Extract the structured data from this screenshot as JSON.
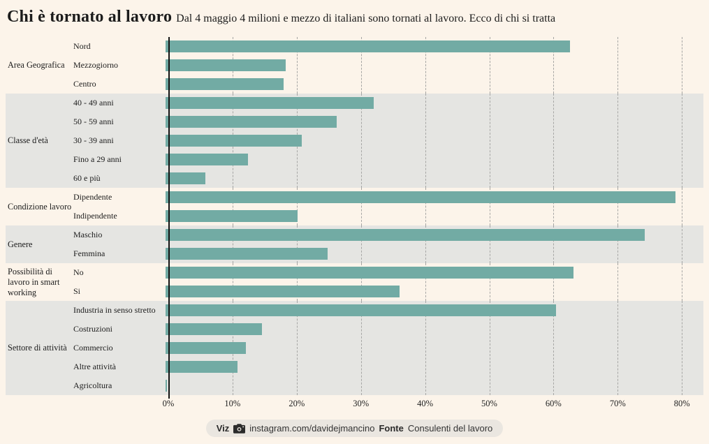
{
  "title": "Chi è tornato al lavoro",
  "subtitle": "Dal 4 maggio 4 milioni e mezzo di italiani sono tornati al lavoro. Ecco di chi si tratta",
  "footer": {
    "viz_label": "Viz",
    "camera_icon": "camera-icon",
    "handle": "instagram.com/davidejmancino",
    "fonte_label": "Fonte",
    "source": "Consulenti del lavoro"
  },
  "colors": {
    "bar": "#72aba4",
    "page_background": "#fcf4ea",
    "band_gray": "#e5e5e2",
    "axis": "#141414",
    "gridline": "#a6a6a4",
    "pill_background": "#eae6e0"
  },
  "chart_data": {
    "type": "bar",
    "orientation": "horizontal",
    "unit": "%",
    "xlim": [
      0,
      80
    ],
    "grid": "dashed-vertical",
    "ticks": [
      "0%",
      "10%",
      "20%",
      "30%",
      "40%",
      "50%",
      "60%",
      "70%",
      "80%"
    ],
    "groups": [
      {
        "label": "Area Geografica",
        "items": [
          {
            "label": "Nord",
            "value": 63.0
          },
          {
            "label": "Mezzogiorno",
            "value": 18.7
          },
          {
            "label": "Centro",
            "value": 18.4
          }
        ]
      },
      {
        "label": "Classe d'età",
        "items": [
          {
            "label": "40 - 49 anni",
            "value": 32.4
          },
          {
            "label": "50 - 59 anni",
            "value": 26.7
          },
          {
            "label": "30 - 39 anni",
            "value": 21.2
          },
          {
            "label": "Fino a 29 anni",
            "value": 12.8
          },
          {
            "label": "60 e più",
            "value": 6.2
          }
        ]
      },
      {
        "label": "Condizione lavoro",
        "items": [
          {
            "label": "Dipendente",
            "value": 79.4
          },
          {
            "label": "Indipendente",
            "value": 20.6
          }
        ]
      },
      {
        "label": "Genere",
        "items": [
          {
            "label": "Maschio",
            "value": 74.7
          },
          {
            "label": "Femmina",
            "value": 25.2
          }
        ]
      },
      {
        "label": "Possibilità di lavoro in smart working",
        "items": [
          {
            "label": "No",
            "value": 63.5
          },
          {
            "label": "Si",
            "value": 36.5
          }
        ]
      },
      {
        "label": "Settore di attività",
        "items": [
          {
            "label": "Industria in senso stretto",
            "value": 60.8
          },
          {
            "label": "Costruzioni",
            "value": 15.0
          },
          {
            "label": "Commercio",
            "value": 12.5
          },
          {
            "label": "Altre attività",
            "value": 11.2
          },
          {
            "label": "Agricoltura",
            "value": 0.2
          }
        ]
      }
    ]
  }
}
